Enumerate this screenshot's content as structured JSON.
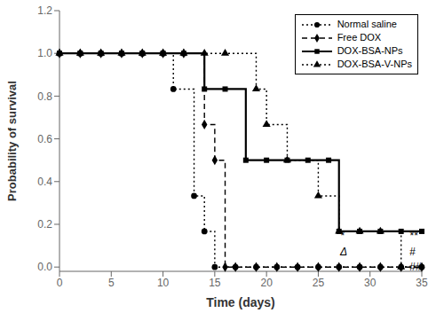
{
  "chart_data": {
    "type": "line",
    "xlabel": "Time (days)",
    "ylabel": "Probability of survival",
    "xlim": [
      0,
      35
    ],
    "ylim": [
      -0.02,
      1.2
    ],
    "xticks": [
      0,
      5,
      10,
      15,
      20,
      25,
      30,
      35
    ],
    "yticks": [
      {
        "value": 0,
        "label": "0.0"
      },
      0.2,
      0.4,
      0.6,
      0.8,
      {
        "value": 1.0,
        "label": "1.0"
      },
      1.2
    ],
    "grid": false,
    "legend": "upper right",
    "series": [
      {
        "name": "Normal saline",
        "color": "#000000",
        "line_style": "dotted",
        "marker": "circle",
        "x": [
          0,
          11,
          11,
          13,
          13,
          14,
          14,
          15,
          15,
          17,
          17,
          35
        ],
        "values": [
          1.0,
          1.0,
          0.833,
          0.833,
          0.333,
          0.333,
          0.167,
          0.167,
          0.0,
          0.0,
          0.0,
          0.0
        ],
        "markers": {
          "x": [
            0,
            2,
            4,
            6,
            8,
            10,
            11,
            13,
            14,
            15,
            17,
            19,
            21,
            23,
            25,
            27,
            29,
            31,
            33,
            35
          ],
          "values": [
            1.0,
            1.0,
            1.0,
            1.0,
            1.0,
            1.0,
            0.833,
            0.333,
            0.167,
            0.0,
            0.0,
            0.0,
            0.0,
            0.0,
            0.0,
            0.0,
            0.0,
            0.0,
            0.0,
            0.0
          ]
        }
      },
      {
        "name": "Free DOX",
        "color": "#000000",
        "line_style": "dashed",
        "marker": "diamond",
        "x": [
          0,
          14,
          14,
          15,
          15,
          16,
          16,
          17,
          17,
          35
        ],
        "values": [
          1.0,
          1.0,
          0.667,
          0.667,
          0.5,
          0.5,
          0.0,
          0.0,
          0.0,
          0.0
        ],
        "markers": {
          "x": [
            0,
            2,
            4,
            6,
            8,
            10,
            12,
            14,
            15,
            16,
            17,
            19,
            21,
            23,
            25,
            27,
            29,
            31,
            33,
            35
          ],
          "values": [
            1.0,
            1.0,
            1.0,
            1.0,
            1.0,
            1.0,
            1.0,
            0.667,
            0.5,
            0.0,
            0.0,
            0.0,
            0.0,
            0.0,
            0.0,
            0.0,
            0.0,
            0.0,
            0.0,
            0.0
          ]
        }
      },
      {
        "name": "DOX-BSA-NPs",
        "color": "#000000",
        "line_style": "solid",
        "marker": "square",
        "x": [
          0,
          14,
          14,
          18,
          18,
          27,
          27,
          35
        ],
        "values": [
          1.0,
          1.0,
          0.833,
          0.833,
          0.5,
          0.5,
          0.167,
          0.167
        ],
        "markers": {
          "x": [
            0,
            2,
            4,
            6,
            8,
            10,
            12,
            14,
            16,
            18,
            20,
            22,
            24,
            26,
            27,
            29,
            31,
            33,
            35
          ],
          "values": [
            1.0,
            1.0,
            1.0,
            1.0,
            1.0,
            1.0,
            1.0,
            0.833,
            0.833,
            0.5,
            0.5,
            0.5,
            0.5,
            0.5,
            0.167,
            0.167,
            0.167,
            0.167,
            0.167
          ]
        }
      },
      {
        "name": "DOX-BSA-V-NPs",
        "color": "#000000",
        "line_style": "dotted",
        "marker": "triangle",
        "x": [
          0,
          19,
          19,
          20,
          20,
          22,
          22,
          25,
          25,
          27,
          27,
          33,
          33,
          35
        ],
        "values": [
          1.0,
          1.0,
          0.833,
          0.833,
          0.667,
          0.667,
          0.5,
          0.5,
          0.333,
          0.333,
          0.167,
          0.167,
          0.0,
          0.0
        ],
        "markers": {
          "x": [
            0,
            2,
            4,
            6,
            8,
            10,
            12,
            14,
            16,
            19,
            20,
            22,
            25,
            27,
            29,
            31,
            33
          ],
          "values": [
            1.0,
            1.0,
            1.0,
            1.0,
            1.0,
            1.0,
            1.0,
            1.0,
            1.0,
            0.833,
            0.667,
            0.5,
            0.333,
            0.167,
            0.167,
            0.167,
            0.0
          ]
        }
      }
    ],
    "annotations": [
      {
        "text": "*",
        "x": 27.1,
        "y": 0.13
      },
      {
        "text": "Δ",
        "x": 27.1,
        "y": 0.055
      },
      {
        "text": "**",
        "x": 33.8,
        "y": 0.13
      },
      {
        "text": "#",
        "x": 33.8,
        "y": 0.055
      },
      {
        "text": "##",
        "x": 33.8,
        "y": -0.015
      }
    ]
  }
}
